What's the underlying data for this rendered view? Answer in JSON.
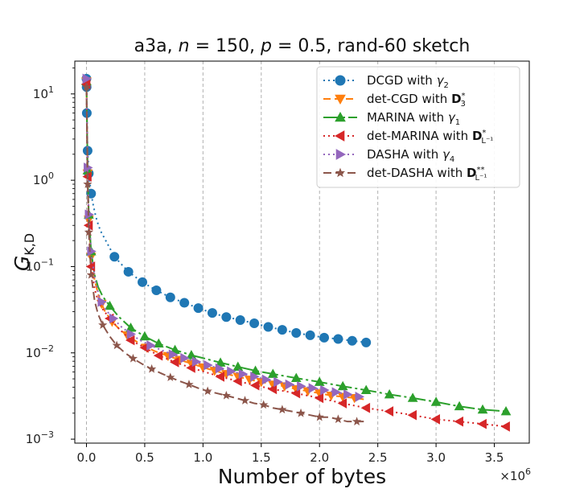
{
  "chart_data": {
    "type": "line",
    "title_parts": [
      "a3a, ",
      "n",
      " = 150, ",
      "p",
      " = 0.5, rand-60 sketch"
    ],
    "xlabel": "Number of bytes",
    "ylabel_main": "G",
    "ylabel_sub": "K,D",
    "x_offset_label": "×10",
    "x_offset_exp": "6",
    "x_scale": 1000000,
    "xlim": [
      -0.1,
      3.8
    ],
    "ylim": [
      0.0009,
      24
    ],
    "y_scale": "log",
    "x_ticks": [
      0.0,
      0.5,
      1.0,
      1.5,
      2.0,
      2.5,
      3.0,
      3.5
    ],
    "x_tick_labels": [
      "0.0",
      "0.5",
      "1.0",
      "1.5",
      "2.0",
      "2.5",
      "3.0",
      "3.5"
    ],
    "y_ticks": [
      0.001,
      0.01,
      0.1,
      1,
      10
    ],
    "y_tick_base": "10",
    "y_tick_exps": [
      "−3",
      "−2",
      "−1",
      "0",
      "1"
    ],
    "grid": "vertical dashed",
    "legend_position": "top-right",
    "series": [
      {
        "name_parts": [
          "DCGD with ",
          "γ",
          "2",
          ""
        ],
        "color": "#1f77b4",
        "marker": "circle",
        "dash": "2,4",
        "x": [
          0.0,
          0.0015,
          0.003,
          0.01,
          0.02,
          0.04,
          0.06,
          0.08,
          0.1,
          0.12,
          0.24,
          0.36,
          0.48,
          0.6,
          0.72,
          0.84,
          0.96,
          1.08,
          1.2,
          1.32,
          1.44,
          1.56,
          1.68,
          1.8,
          1.92,
          2.04,
          2.16,
          2.28,
          2.4
        ],
        "y": [
          15,
          12,
          6,
          2.2,
          1.2,
          0.7,
          0.5,
          0.38,
          0.31,
          0.26,
          0.13,
          0.087,
          0.066,
          0.053,
          0.044,
          0.038,
          0.033,
          0.029,
          0.026,
          0.024,
          0.022,
          0.02,
          0.0185,
          0.017,
          0.016,
          0.015,
          0.0145,
          0.0138,
          0.0132
        ]
      },
      {
        "name_parts": [
          "det-CGD with ",
          "D",
          "3",
          "*"
        ],
        "color": "#ff7f0e",
        "marker": "triangle-down",
        "dash": "9,5",
        "x": [
          0.0,
          0.01,
          0.02,
          0.04,
          0.07,
          0.1,
          0.13,
          0.16,
          0.22,
          0.28,
          0.35,
          0.43,
          0.52,
          0.6,
          0.7,
          0.8,
          0.9,
          1.0,
          1.1,
          1.2,
          1.3,
          1.4,
          1.5,
          1.6,
          1.7,
          1.8,
          1.9,
          2.0,
          2.1,
          2.2,
          2.3,
          2.38
        ],
        "y": [
          14,
          1.2,
          0.35,
          0.13,
          0.07,
          0.048,
          0.037,
          0.03,
          0.023,
          0.019,
          0.016,
          0.0135,
          0.0115,
          0.0103,
          0.0092,
          0.0083,
          0.0075,
          0.0068,
          0.0062,
          0.0057,
          0.0053,
          0.0049,
          0.0046,
          0.0043,
          0.0041,
          0.0038,
          0.0036,
          0.0034,
          0.0032,
          0.0031,
          0.003,
          0.0029
        ]
      },
      {
        "name_parts": [
          "MARINA with ",
          "γ",
          "1",
          ""
        ],
        "color": "#2ca02c",
        "marker": "triangle-up",
        "dash": "20,4,3,4",
        "x": [
          0.0,
          0.01,
          0.02,
          0.04,
          0.07,
          0.1,
          0.14,
          0.2,
          0.28,
          0.38,
          0.5,
          0.62,
          0.76,
          0.9,
          1.0,
          1.15,
          1.3,
          1.45,
          1.6,
          1.8,
          2.0,
          2.2,
          2.4,
          2.6,
          2.8,
          3.0,
          3.2,
          3.4,
          3.6
        ],
        "y": [
          14,
          1.3,
          0.4,
          0.15,
          0.08,
          0.058,
          0.045,
          0.035,
          0.026,
          0.0195,
          0.0155,
          0.0128,
          0.0108,
          0.0094,
          0.0087,
          0.0077,
          0.0069,
          0.0062,
          0.0057,
          0.0051,
          0.0046,
          0.0041,
          0.0037,
          0.0033,
          0.003,
          0.0027,
          0.0024,
          0.0022,
          0.0021
        ]
      },
      {
        "name_parts": [
          "det-MARINA with ",
          "D",
          "L⁻¹",
          "*"
        ],
        "color": "#d62728",
        "marker": "triangle-left",
        "dash": "2,4",
        "x": [
          0.0,
          0.01,
          0.02,
          0.04,
          0.07,
          0.1,
          0.14,
          0.2,
          0.28,
          0.38,
          0.5,
          0.62,
          0.76,
          0.9,
          1.0,
          1.15,
          1.3,
          1.45,
          1.6,
          1.8,
          2.0,
          2.2,
          2.4,
          2.6,
          2.8,
          3.0,
          3.2,
          3.4,
          3.6
        ],
        "y": [
          13,
          1.1,
          0.3,
          0.1,
          0.055,
          0.04,
          0.032,
          0.025,
          0.019,
          0.014,
          0.0115,
          0.0093,
          0.0078,
          0.0067,
          0.0061,
          0.0053,
          0.0047,
          0.0042,
          0.0038,
          0.0034,
          0.003,
          0.0026,
          0.0023,
          0.0021,
          0.0019,
          0.0017,
          0.0016,
          0.0015,
          0.0014
        ]
      },
      {
        "name_parts": [
          "DASHA with ",
          "γ",
          "4",
          ""
        ],
        "color": "#9467bd",
        "marker": "triangle-right",
        "dash": "2,4",
        "x": [
          0.0,
          0.01,
          0.02,
          0.04,
          0.07,
          0.1,
          0.13,
          0.17,
          0.23,
          0.3,
          0.38,
          0.46,
          0.55,
          0.64,
          0.74,
          0.84,
          0.94,
          1.04,
          1.14,
          1.24,
          1.34,
          1.44,
          1.54,
          1.64,
          1.74,
          1.84,
          1.94,
          2.04,
          2.14,
          2.24,
          2.34,
          2.38
        ],
        "y": [
          15,
          1.4,
          0.4,
          0.15,
          0.075,
          0.05,
          0.039,
          0.031,
          0.025,
          0.02,
          0.0165,
          0.014,
          0.0122,
          0.0108,
          0.0096,
          0.0087,
          0.0079,
          0.0072,
          0.0066,
          0.0061,
          0.0057,
          0.0053,
          0.0049,
          0.0046,
          0.0043,
          0.0041,
          0.0039,
          0.0037,
          0.0035,
          0.0033,
          0.0031,
          0.003
        ]
      },
      {
        "name_parts": [
          "det-DASHA with ",
          "D",
          "L⁻¹",
          "**"
        ],
        "color": "#8c564b",
        "marker": "star",
        "dash": "10,5",
        "x": [
          0.0,
          0.01,
          0.02,
          0.04,
          0.07,
          0.1,
          0.14,
          0.2,
          0.26,
          0.33,
          0.4,
          0.48,
          0.56,
          0.64,
          0.72,
          0.8,
          0.88,
          0.96,
          1.04,
          1.12,
          1.2,
          1.28,
          1.36,
          1.44,
          1.52,
          1.6,
          1.68,
          1.76,
          1.84,
          1.92,
          2.0,
          2.08,
          2.16,
          2.24,
          2.32,
          2.38
        ],
        "y": [
          12,
          0.9,
          0.25,
          0.08,
          0.04,
          0.028,
          0.021,
          0.0155,
          0.0122,
          0.01,
          0.0086,
          0.0074,
          0.0065,
          0.0058,
          0.0052,
          0.0047,
          0.0043,
          0.0039,
          0.0036,
          0.0034,
          0.0032,
          0.003,
          0.0028,
          0.0026,
          0.0025,
          0.0023,
          0.0022,
          0.0021,
          0.002,
          0.0019,
          0.0018,
          0.0018,
          0.0017,
          0.0016,
          0.0016,
          0.0016
        ]
      }
    ]
  }
}
